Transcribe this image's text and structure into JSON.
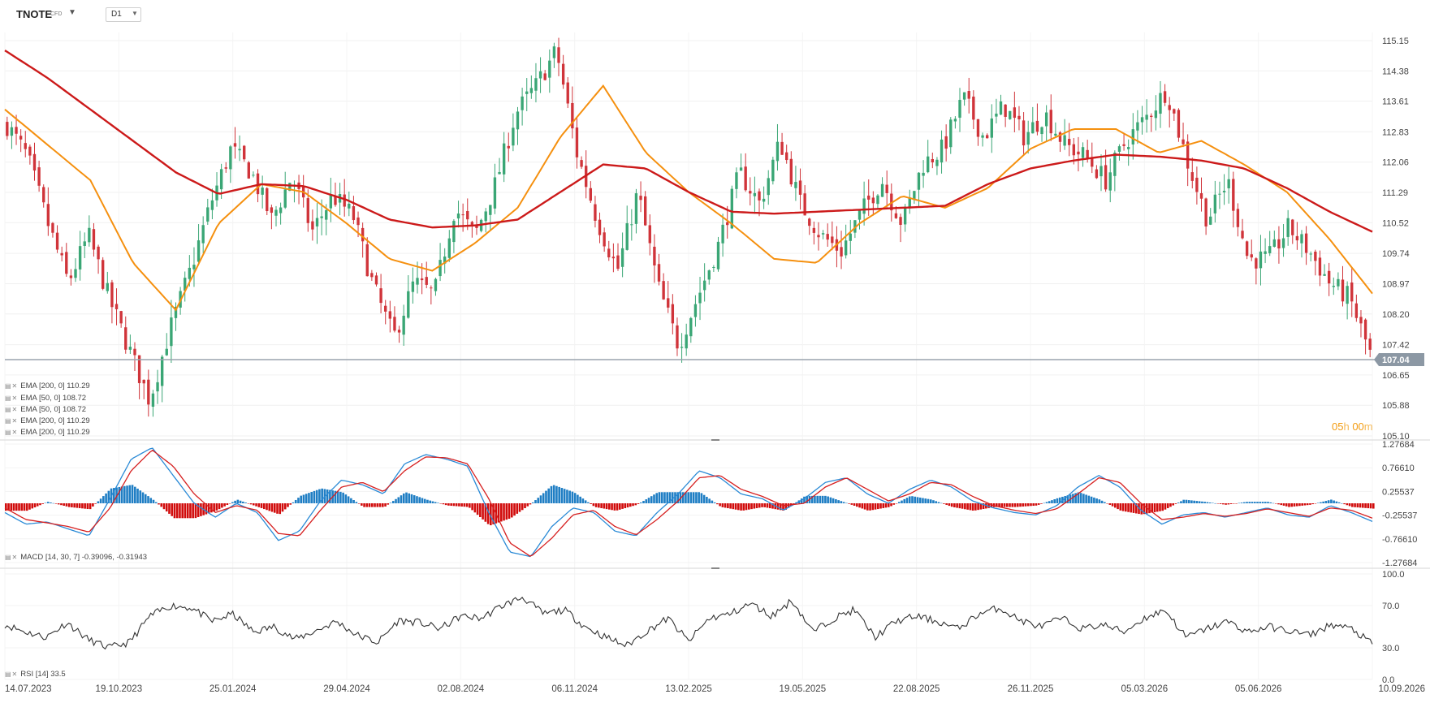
{
  "header": {
    "symbol": "TNOTE",
    "symbol_type": "CFD",
    "timeframe": "D1"
  },
  "price_axis": {
    "ticks": [
      "115.15",
      "114.38",
      "113.61",
      "112.83",
      "112.06",
      "111.29",
      "110.52",
      "109.74",
      "108.97",
      "108.20",
      "107.42",
      "106.65",
      "105.88",
      "105.10"
    ],
    "min": 105.1,
    "max": 115.15
  },
  "current_price": {
    "value": 107.04,
    "label": "107.04"
  },
  "countdown": {
    "hours": "05",
    "hours_unit": "h",
    "minutes": "00",
    "minutes_unit": "m"
  },
  "legends": {
    "main": [
      "EMA [200, 0] 110.29",
      "EMA [50, 0] 108.72",
      "EMA [50, 0] 108.72",
      "EMA [200, 0] 110.29",
      "EMA [200, 0] 110.29"
    ],
    "macd": "MACD [14, 30, 7] -0.39096, -0.31943",
    "rsi": "RSI [14] 33.5"
  },
  "macd_axis": {
    "ticks": [
      "1.27684",
      "0.76610",
      "0.25537",
      "-0.25537",
      "-0.76610",
      "-1.27684"
    ],
    "max": 1.27684,
    "min": -1.27684
  },
  "rsi_axis": {
    "ticks": [
      "100.0",
      "70.0",
      "30.0",
      "0.0"
    ]
  },
  "date_axis": {
    "labels": [
      "14.07.2023",
      "19.10.2023",
      "25.01.2024",
      "29.04.2024",
      "02.08.2024",
      "06.11.2024",
      "13.02.2025",
      "19.05.2025",
      "22.08.2025",
      "26.11.2025",
      "05.03.2026",
      "05.06.2026",
      "10.09.2026"
    ]
  },
  "colors": {
    "ema200": "#cc1a1a",
    "ema50": "#f5900f",
    "macd_line": "#2a8ad6",
    "signal_line": "#d62020",
    "hist_pos": "#1f7ec4",
    "hist_neg": "#d10c0c",
    "rsi": "#333333",
    "bull": "#3aa675",
    "bear": "#d0343a",
    "price_tag": "#8c98a4"
  },
  "chart_data": [
    {
      "type": "candlestick",
      "title": "",
      "ylim": [
        105.1,
        115.15
      ],
      "x_range": [
        "14.07.2023",
        "10.09.2026"
      ],
      "series": [
        {
          "name": "EMA [200, 0]",
          "kind": "line",
          "values": [
            114.9,
            114.2,
            113.4,
            112.6,
            111.8,
            111.25,
            111.5,
            111.45,
            111.1,
            110.6,
            110.4,
            110.45,
            110.6,
            111.3,
            112.0,
            111.9,
            111.3,
            110.8,
            110.75,
            110.8,
            110.85,
            110.9,
            110.95,
            111.5,
            111.9,
            112.1,
            112.25,
            112.2,
            112.1,
            111.9,
            111.4,
            110.8,
            110.29
          ]
        },
        {
          "name": "EMA [50, 0]",
          "kind": "line",
          "values": [
            113.4,
            112.5,
            111.6,
            109.5,
            108.3,
            110.5,
            111.5,
            111.3,
            110.5,
            109.6,
            109.3,
            110.0,
            110.9,
            112.7,
            114.0,
            112.3,
            111.3,
            110.5,
            109.6,
            109.5,
            110.5,
            111.2,
            110.9,
            111.4,
            112.4,
            112.9,
            112.9,
            112.3,
            112.6,
            112.0,
            111.3,
            110.1,
            108.72
          ]
        },
        {
          "name": "EMA [200, 0]",
          "kind": "line",
          "values": [
            114.9,
            114.2,
            113.4,
            112.6,
            111.8,
            111.25,
            111.5,
            111.45,
            111.1,
            110.6,
            110.4,
            110.45,
            110.6,
            111.3,
            112.0,
            111.9,
            111.3,
            110.8,
            110.75,
            110.8,
            110.85,
            110.9,
            110.95,
            111.5,
            111.9,
            112.1,
            112.25,
            112.2,
            112.1,
            111.9,
            111.4,
            110.8,
            110.29
          ]
        }
      ],
      "close_path": [
        113.0,
        112.2,
        110.5,
        109.0,
        110.2,
        108.6,
        107.3,
        106.0,
        107.8,
        109.3,
        111.0,
        112.4,
        111.8,
        110.6,
        111.7,
        110.3,
        111.2,
        110.7,
        108.9,
        107.6,
        109.0,
        108.7,
        110.9,
        110.2,
        111.5,
        113.3,
        114.0,
        114.9,
        112.3,
        110.6,
        109.3,
        111.3,
        108.9,
        107.4,
        108.7,
        110.0,
        111.8,
        111.0,
        112.6,
        111.0,
        110.2,
        109.8,
        110.8,
        111.6,
        110.5,
        112.0,
        112.4,
        113.7,
        112.7,
        113.5,
        112.7,
        113.3,
        112.5,
        112.2,
        111.6,
        112.6,
        113.2,
        113.9,
        112.1,
        110.6,
        111.6,
        109.6,
        109.6,
        110.4,
        109.8,
        109.0,
        108.6,
        107.2
      ]
    },
    {
      "type": "macd",
      "name": "MACD [14, 30, 7]",
      "ylim": [
        -1.27684,
        1.27684
      ],
      "last": {
        "macd": -0.39096,
        "signal": -0.31943
      },
      "macd_values": [
        -0.2,
        -0.45,
        -0.4,
        -0.55,
        -0.7,
        0.1,
        0.95,
        1.2,
        0.6,
        0.0,
        -0.3,
        0.0,
        -0.2,
        -0.8,
        -0.6,
        0.05,
        0.5,
        0.4,
        0.2,
        0.85,
        1.05,
        0.95,
        0.8,
        -0.2,
        -1.05,
        -1.15,
        -0.5,
        -0.1,
        -0.2,
        -0.6,
        -0.7,
        -0.2,
        0.2,
        0.7,
        0.55,
        0.2,
        0.1,
        -0.15,
        0.1,
        0.45,
        0.55,
        0.2,
        0.0,
        0.3,
        0.5,
        0.35,
        0.05,
        -0.1,
        -0.2,
        -0.25,
        -0.05,
        0.35,
        0.6,
        0.35,
        -0.15,
        -0.45,
        -0.25,
        -0.2,
        -0.3,
        -0.2,
        -0.1,
        -0.25,
        -0.3,
        -0.05,
        -0.2,
        -0.39096
      ],
      "signal_values": [
        -0.1,
        -0.35,
        -0.42,
        -0.5,
        -0.62,
        -0.1,
        0.7,
        1.15,
        0.8,
        0.2,
        -0.2,
        -0.05,
        -0.15,
        -0.65,
        -0.7,
        -0.15,
        0.35,
        0.45,
        0.25,
        0.7,
        1.0,
        0.98,
        0.85,
        0.1,
        -0.85,
        -1.15,
        -0.75,
        -0.25,
        -0.15,
        -0.5,
        -0.68,
        -0.35,
        0.05,
        0.55,
        0.6,
        0.3,
        0.15,
        -0.05,
        0.0,
        0.35,
        0.55,
        0.3,
        0.05,
        0.2,
        0.45,
        0.4,
        0.15,
        -0.05,
        -0.15,
        -0.22,
        -0.12,
        0.2,
        0.55,
        0.45,
        0.0,
        -0.35,
        -0.3,
        -0.22,
        -0.28,
        -0.22,
        -0.12,
        -0.2,
        -0.28,
        -0.1,
        -0.15,
        -0.31943
      ]
    },
    {
      "type": "line",
      "name": "RSI [14]",
      "ylim": [
        0,
        100
      ],
      "last": 33.5,
      "values": [
        52,
        45,
        40,
        54,
        38,
        30,
        35,
        60,
        70,
        68,
        55,
        62,
        45,
        50,
        38,
        46,
        55,
        42,
        35,
        56,
        54,
        48,
        60,
        58,
        70,
        78,
        62,
        66,
        50,
        40,
        32,
        46,
        58,
        36,
        58,
        62,
        72,
        60,
        75,
        45,
        58,
        66,
        40,
        55,
        60,
        55,
        48,
        62,
        68,
        56,
        50,
        58,
        48,
        52,
        45,
        58,
        66,
        40,
        48,
        55,
        45,
        50,
        46,
        42,
        52,
        48,
        33.5
      ]
    }
  ]
}
